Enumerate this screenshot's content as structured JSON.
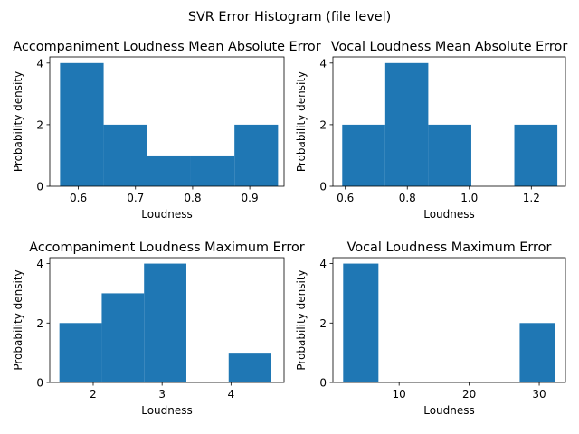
{
  "figure": {
    "suptitle": "SVR Error Histogram (file level)"
  },
  "chart_data": [
    {
      "type": "bar",
      "title": "Accompaniment Loudness Mean Absolute Error",
      "xlabel": "Loudness",
      "ylabel": "Probability density",
      "xlim": [
        0.55,
        0.96
      ],
      "ylim": [
        0,
        4.2
      ],
      "xticks": [
        0.6,
        0.7,
        0.8,
        0.9
      ],
      "xtick_labels": [
        "0.6",
        "0.7",
        "0.8",
        "0.9"
      ],
      "yticks": [
        0,
        2,
        4
      ],
      "ytick_labels": [
        "0",
        "2",
        "4"
      ],
      "bin_edges": [
        0.568,
        0.6443,
        0.7206,
        0.7969,
        0.8732,
        0.9495
      ],
      "values": [
        4,
        2,
        1,
        1,
        2
      ],
      "color": "#1f77b4"
    },
    {
      "type": "bar",
      "title": "Vocal Loudness Mean Absolute Error",
      "xlabel": "Loudness",
      "ylabel": "Probability density",
      "xlim": [
        0.56,
        1.31
      ],
      "ylim": [
        0,
        4.2
      ],
      "xticks": [
        0.6,
        0.8,
        1.0,
        1.2
      ],
      "xtick_labels": [
        "0.6",
        "0.8",
        "1.0",
        "1.2"
      ],
      "yticks": [
        0,
        2,
        4
      ],
      "ytick_labels": [
        "0",
        "2",
        "4"
      ],
      "bin_edges": [
        0.59,
        0.7288,
        0.8676,
        1.0064,
        1.1452,
        1.284
      ],
      "values": [
        2,
        4,
        2,
        0,
        2
      ],
      "color": "#1f77b4"
    },
    {
      "type": "bar",
      "title": "Accompaniment Loudness Maximum Error",
      "xlabel": "Loudness",
      "ylabel": "Probability density",
      "xlim": [
        1.37,
        4.77
      ],
      "ylim": [
        0,
        4.2
      ],
      "xticks": [
        2,
        3,
        4
      ],
      "xtick_labels": [
        "2",
        "3",
        "4"
      ],
      "yticks": [
        0,
        2,
        4
      ],
      "ytick_labels": [
        "0",
        "2",
        "4"
      ],
      "bin_edges": [
        1.51,
        2.124,
        2.738,
        3.352,
        3.966,
        4.58
      ],
      "values": [
        2,
        3,
        4,
        0,
        1
      ],
      "color": "#1f77b4"
    },
    {
      "type": "bar",
      "title": "Vocal Loudness Maximum Error",
      "xlabel": "Loudness",
      "ylabel": "Probability density",
      "xlim": [
        0.55,
        33.74
      ],
      "ylim": [
        0,
        4.2
      ],
      "xticks": [
        10,
        20,
        30
      ],
      "xtick_labels": [
        "10",
        "20",
        "30"
      ],
      "yticks": [
        0,
        2,
        4
      ],
      "ytick_labels": [
        "0",
        "2",
        "4"
      ],
      "bin_edges": [
        2.01,
        7.05,
        12.09,
        17.13,
        22.17,
        27.21,
        32.25
      ],
      "values": [
        4,
        0,
        0,
        0,
        0,
        2
      ],
      "color": "#1f77b4"
    }
  ]
}
